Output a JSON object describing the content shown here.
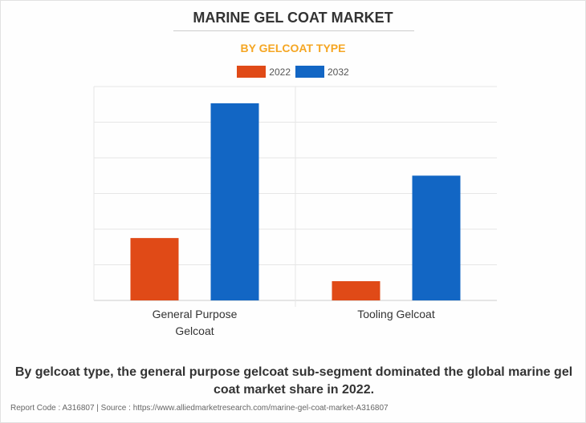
{
  "chart_data": {
    "type": "bar",
    "title": "MARINE GEL COAT MARKET",
    "subtitle": "BY GELCOAT TYPE",
    "categories": [
      [
        "General Purpose",
        "Gelcoat"
      ],
      [
        "Tooling Gelcoat"
      ]
    ],
    "series": [
      {
        "name": "2022",
        "color": "#e04a17",
        "values": [
          1.75,
          0.54
        ]
      },
      {
        "name": "2032",
        "color": "#1266c4",
        "values": [
          5.53,
          3.5
        ]
      }
    ],
    "ylim": [
      0,
      6
    ],
    "grid": true,
    "y_tick_labels_shown": false,
    "legend_placement": "top-center"
  },
  "caption": "By gelcoat type, the general purpose gelcoat sub-segment dominated the global marine gel coat market share in 2022.",
  "footer": "Report Code : A316807  |  Source : https://www.alliedmarketresearch.com/marine-gel-coat-market-A316807"
}
